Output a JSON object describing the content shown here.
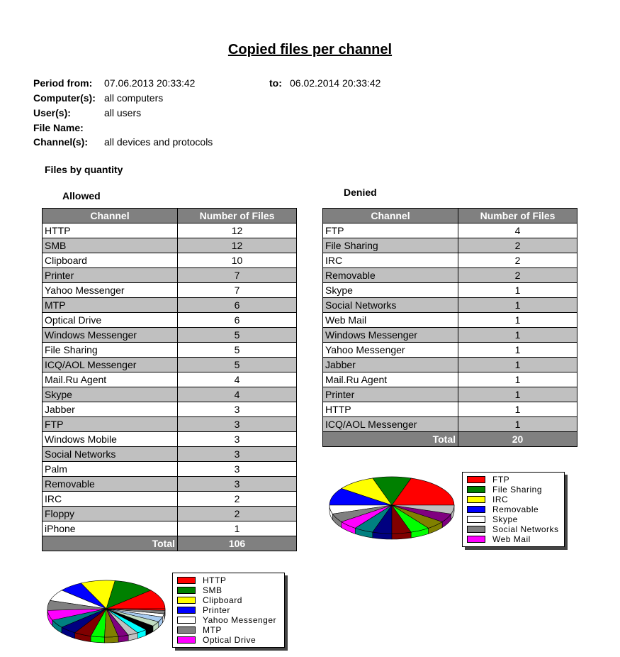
{
  "title": "Copied files per channel",
  "filters": {
    "period_from_label": "Period from:",
    "period_from": "07.06.2013 20:33:42",
    "to_label": "to:",
    "to": "06.02.2014 20:33:42",
    "computers_label": "Computer(s):",
    "computers": "all computers",
    "users_label": "User(s):",
    "users": "all users",
    "filename_label": "File Name:",
    "channels_label": "Channel(s):",
    "channels": "all devices and protocols"
  },
  "section": "Files by quantity",
  "allowed": {
    "heading": "Allowed",
    "col_channel": "Channel",
    "col_files": "Number of Files",
    "total_label": "Total",
    "total": "106",
    "rows": [
      [
        "HTTP",
        "12"
      ],
      [
        "SMB",
        "12"
      ],
      [
        "Clipboard",
        "10"
      ],
      [
        "Printer",
        "7"
      ],
      [
        "Yahoo Messenger",
        "7"
      ],
      [
        "MTP",
        "6"
      ],
      [
        "Optical Drive",
        "6"
      ],
      [
        "Windows Messenger",
        "5"
      ],
      [
        "File Sharing",
        "5"
      ],
      [
        "ICQ/AOL Messenger",
        "5"
      ],
      [
        "Mail.Ru Agent",
        "4"
      ],
      [
        "Skype",
        "4"
      ],
      [
        "Jabber",
        "3"
      ],
      [
        "FTP",
        "3"
      ],
      [
        "Windows Mobile",
        "3"
      ],
      [
        "Social Networks",
        "3"
      ],
      [
        "Palm",
        "3"
      ],
      [
        "Removable",
        "3"
      ],
      [
        "IRC",
        "2"
      ],
      [
        "Floppy",
        "2"
      ],
      [
        "iPhone",
        "1"
      ]
    ]
  },
  "denied": {
    "heading": "Denied",
    "col_channel": "Channel",
    "col_files": "Number of Files",
    "total_label": "Total",
    "total": "20",
    "rows": [
      [
        "FTP",
        "4"
      ],
      [
        "File Sharing",
        "2"
      ],
      [
        "IRC",
        "2"
      ],
      [
        "Removable",
        "2"
      ],
      [
        "Skype",
        "1"
      ],
      [
        "Social Networks",
        "1"
      ],
      [
        "Web Mail",
        "1"
      ],
      [
        "Windows Messenger",
        "1"
      ],
      [
        "Yahoo Messenger",
        "1"
      ],
      [
        "Jabber",
        "1"
      ],
      [
        "Mail.Ru Agent",
        "1"
      ],
      [
        "Printer",
        "1"
      ],
      [
        "HTTP",
        "1"
      ],
      [
        "ICQ/AOL Messenger",
        "1"
      ]
    ]
  },
  "palette": [
    "#ff0000",
    "#008000",
    "#ffff00",
    "#0000ff",
    "#ffffff",
    "#808080",
    "#ff00ff",
    "#008080",
    "#000080",
    "#800000",
    "#00ff00",
    "#808000",
    "#800080",
    "#c0c0c0",
    "#00ffff",
    "#000000",
    "#c0dcc0",
    "#a6caf0",
    "#ffffff",
    "#808080",
    "#ff0000"
  ],
  "chart_data": [
    {
      "type": "pie",
      "categories": [
        "HTTP",
        "SMB",
        "Clipboard",
        "Printer",
        "Yahoo Messenger",
        "MTP",
        "Optical Drive",
        "Windows Messenger",
        "File Sharing",
        "ICQ/AOL Messenger",
        "Mail.Ru Agent",
        "Skype",
        "Jabber",
        "FTP",
        "Windows Mobile",
        "Social Networks",
        "Palm",
        "Removable",
        "IRC",
        "Floppy",
        "iPhone"
      ],
      "values": [
        12,
        12,
        10,
        7,
        7,
        6,
        6,
        5,
        5,
        5,
        4,
        4,
        3,
        3,
        3,
        3,
        3,
        3,
        2,
        2,
        1
      ],
      "legend_visible": [
        "HTTP",
        "SMB",
        "Clipboard",
        "Printer",
        "Yahoo Messenger",
        "MTP",
        "Optical Drive"
      ],
      "legend": "right"
    },
    {
      "type": "pie",
      "categories": [
        "FTP",
        "File Sharing",
        "IRC",
        "Removable",
        "Skype",
        "Social Networks",
        "Web Mail",
        "Windows Messenger",
        "Yahoo Messenger",
        "Jabber",
        "Mail.Ru Agent",
        "Printer",
        "HTTP",
        "ICQ/AOL Messenger"
      ],
      "values": [
        4,
        2,
        2,
        2,
        1,
        1,
        1,
        1,
        1,
        1,
        1,
        1,
        1,
        1
      ],
      "legend_visible": [
        "FTP",
        "File Sharing",
        "IRC",
        "Removable",
        "Skype",
        "Social Networks",
        "Web Mail"
      ],
      "legend": "right"
    }
  ]
}
